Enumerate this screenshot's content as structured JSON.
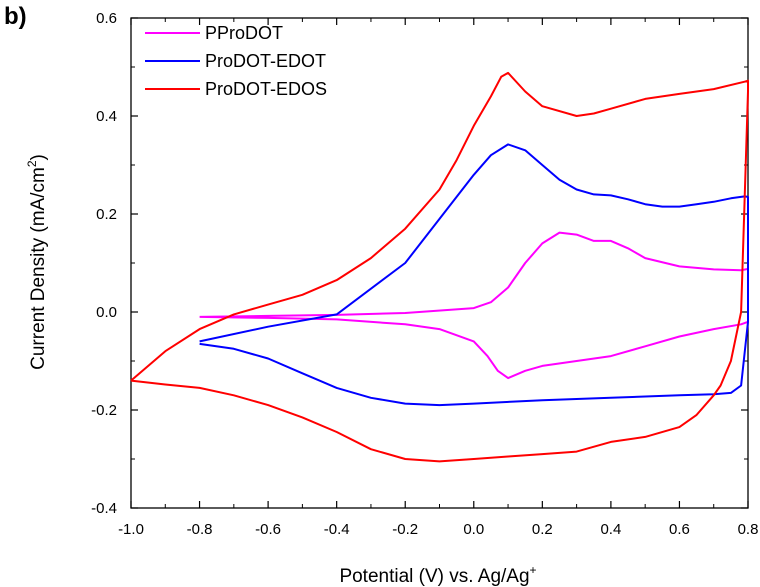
{
  "panel_label": "b)",
  "chart_data": {
    "type": "line",
    "title": "",
    "xlabel": "Potential (V) vs. Ag/Ag",
    "xlabel_superscript": "+",
    "ylabel": "Current Density (mA/cm",
    "ylabel_superscript": "2",
    "ylabel_close": ")",
    "xlim": [
      -1.0,
      0.8
    ],
    "ylim": [
      -0.4,
      0.6
    ],
    "xticks": [
      "-1.0",
      "-0.8",
      "-0.6",
      "-0.4",
      "-0.2",
      "0.0",
      "0.2",
      "0.4",
      "0.6",
      "0.8"
    ],
    "yticks": [
      "-0.4",
      "-0.2",
      "0.0",
      "0.2",
      "0.4",
      "0.6"
    ],
    "grid": false,
    "legend_position": "top-left",
    "series": [
      {
        "name": "PProDOT",
        "color": "#ff00ff",
        "x": [
          -0.8,
          -0.6,
          -0.4,
          -0.2,
          0.0,
          0.05,
          0.1,
          0.15,
          0.2,
          0.25,
          0.3,
          0.35,
          0.4,
          0.45,
          0.5,
          0.6,
          0.7,
          0.78,
          0.8,
          0.8,
          0.78,
          0.7,
          0.6,
          0.5,
          0.4,
          0.3,
          0.2,
          0.15,
          0.1,
          0.07,
          0.04,
          0.0,
          -0.1,
          -0.2,
          -0.4,
          -0.6,
          -0.8
        ],
        "y": [
          -0.01,
          -0.008,
          -0.006,
          -0.002,
          0.008,
          0.02,
          0.05,
          0.1,
          0.14,
          0.162,
          0.158,
          0.145,
          0.145,
          0.13,
          0.11,
          0.093,
          0.087,
          0.085,
          0.088,
          -0.02,
          -0.025,
          -0.035,
          -0.05,
          -0.07,
          -0.09,
          -0.1,
          -0.11,
          -0.12,
          -0.135,
          -0.12,
          -0.09,
          -0.06,
          -0.035,
          -0.025,
          -0.015,
          -0.012,
          -0.01
        ]
      },
      {
        "name": "ProDOT-EDOT",
        "color": "#0000ff",
        "x": [
          -0.8,
          -0.6,
          -0.4,
          -0.2,
          -0.1,
          0.0,
          0.05,
          0.1,
          0.15,
          0.2,
          0.25,
          0.3,
          0.35,
          0.4,
          0.45,
          0.5,
          0.55,
          0.6,
          0.65,
          0.7,
          0.75,
          0.79,
          0.8,
          0.8,
          0.78,
          0.75,
          0.7,
          0.6,
          0.4,
          0.2,
          0.0,
          -0.1,
          -0.2,
          -0.3,
          -0.4,
          -0.5,
          -0.6,
          -0.7,
          -0.8
        ],
        "y": [
          -0.06,
          -0.03,
          -0.005,
          0.1,
          0.19,
          0.28,
          0.32,
          0.342,
          0.33,
          0.3,
          0.27,
          0.25,
          0.24,
          0.238,
          0.23,
          0.22,
          0.215,
          0.215,
          0.22,
          0.225,
          0.232,
          0.236,
          0.235,
          -0.02,
          -0.15,
          -0.165,
          -0.168,
          -0.17,
          -0.175,
          -0.18,
          -0.187,
          -0.19,
          -0.187,
          -0.175,
          -0.155,
          -0.125,
          -0.095,
          -0.075,
          -0.065
        ]
      },
      {
        "name": "ProDOT-EDOS",
        "color": "#ff0000",
        "x": [
          -1.0,
          -0.9,
          -0.8,
          -0.7,
          -0.6,
          -0.5,
          -0.4,
          -0.3,
          -0.2,
          -0.1,
          -0.05,
          0.0,
          0.05,
          0.08,
          0.1,
          0.15,
          0.2,
          0.3,
          0.35,
          0.4,
          0.5,
          0.6,
          0.7,
          0.79,
          0.8,
          0.8,
          0.78,
          0.75,
          0.72,
          0.7,
          0.65,
          0.6,
          0.5,
          0.4,
          0.3,
          0.2,
          0.1,
          0.0,
          -0.1,
          -0.2,
          -0.3,
          -0.4,
          -0.5,
          -0.6,
          -0.7,
          -0.8,
          -0.9,
          -1.0
        ],
        "y": [
          -0.14,
          -0.08,
          -0.035,
          -0.005,
          0.015,
          0.035,
          0.065,
          0.11,
          0.17,
          0.25,
          0.31,
          0.38,
          0.44,
          0.48,
          0.488,
          0.45,
          0.42,
          0.4,
          0.405,
          0.415,
          0.435,
          0.445,
          0.455,
          0.47,
          0.472,
          0.45,
          0.0,
          -0.1,
          -0.15,
          -0.17,
          -0.21,
          -0.235,
          -0.255,
          -0.265,
          -0.285,
          -0.29,
          -0.295,
          -0.3,
          -0.305,
          -0.3,
          -0.28,
          -0.245,
          -0.215,
          -0.19,
          -0.17,
          -0.155,
          -0.148,
          -0.14
        ]
      }
    ]
  }
}
